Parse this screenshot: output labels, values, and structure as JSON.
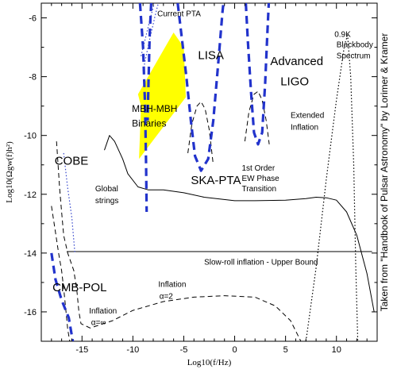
{
  "chart_data": {
    "type": "line",
    "xlabel": "Log10(f/Hz)",
    "ylabel": "Log10(Ωgw(f)h²)",
    "xlim": [
      -19,
      14
    ],
    "ylim": [
      -17,
      -5.5
    ],
    "x_ticks": [
      -15,
      -10,
      -5,
      0,
      5,
      10
    ],
    "y_ticks": [
      -16,
      -14,
      -12,
      -10,
      -8,
      -6
    ],
    "credit": "Taken from \"Handbook of Pulsar Astronomy\" by Lorimer & Kramer",
    "series": [
      {
        "style": "thin-solid",
        "color": "#000000",
        "points": [
          [
            -12.8,
            -10.5
          ],
          [
            -12.3,
            -10.0
          ],
          [
            -11.8,
            -10.2
          ],
          [
            -11.0,
            -10.8
          ],
          [
            -10.5,
            -11.3
          ],
          [
            -9.5,
            -11.75
          ],
          [
            -8.5,
            -11.85
          ],
          [
            -7.0,
            -11.85
          ],
          [
            -5.0,
            -11.95
          ],
          [
            -3.0,
            -12.1
          ],
          [
            0,
            -12.22
          ],
          [
            2.0,
            -12.22
          ],
          [
            5.0,
            -12.2
          ],
          [
            7.0,
            -12.15
          ],
          [
            8.0,
            -12.1
          ],
          [
            9.0,
            -12.12
          ],
          [
            10.0,
            -12.2
          ],
          [
            11.0,
            -12.6
          ],
          [
            12.0,
            -13.4
          ],
          [
            13.0,
            -14.7
          ],
          [
            13.7,
            -16.0
          ]
        ]
      },
      {
        "style": "thin-solid",
        "color": "#000000",
        "points": [
          [
            -16.5,
            -13.95
          ],
          [
            13.5,
            -13.95
          ]
        ]
      },
      {
        "style": "thin-dash",
        "color": "#000000",
        "points": [
          [
            -17.5,
            -10.2
          ],
          [
            -17.2,
            -11.8
          ],
          [
            -17.0,
            -12.6
          ],
          [
            -16.8,
            -13.4
          ],
          [
            -16.4,
            -14.0
          ],
          [
            -15.8,
            -14.6
          ],
          [
            -15.5,
            -15.3
          ],
          [
            -15.3,
            -16.0
          ],
          [
            -15.1,
            -16.4
          ],
          [
            -14.2,
            -16.55
          ],
          [
            -12.0,
            -16.3
          ],
          [
            -10.0,
            -15.95
          ],
          [
            -7.0,
            -15.65
          ],
          [
            -4.0,
            -15.5
          ],
          [
            -1.0,
            -15.45
          ],
          [
            2.0,
            -15.5
          ],
          [
            4.0,
            -15.8
          ],
          [
            5.5,
            -16.3
          ],
          [
            6.5,
            -17.0
          ]
        ]
      },
      {
        "style": "thin-dash",
        "color": "#000000",
        "points": [
          [
            -18.0,
            -12.4
          ],
          [
            -17.6,
            -13.3
          ],
          [
            -17.3,
            -14.0
          ],
          [
            -17.0,
            -14.6
          ],
          [
            -16.8,
            -15.2
          ],
          [
            -16.6,
            -15.9
          ],
          [
            -16.4,
            -16.6
          ],
          [
            -16.2,
            -17.0
          ]
        ]
      },
      {
        "style": "thin-dash",
        "color": "#000000",
        "points": [
          [
            -4.6,
            -10.6
          ],
          [
            -4.2,
            -9.6
          ],
          [
            -3.7,
            -9.0
          ],
          [
            -3.3,
            -8.85
          ],
          [
            -2.9,
            -9.1
          ],
          [
            -2.5,
            -9.8
          ],
          [
            -2.1,
            -11.0
          ]
        ]
      },
      {
        "style": "thin-dash",
        "color": "#000000",
        "points": [
          [
            1.0,
            -10.2
          ],
          [
            1.4,
            -9.2
          ],
          [
            1.9,
            -8.6
          ],
          [
            2.3,
            -8.5
          ],
          [
            2.7,
            -8.8
          ],
          [
            3.1,
            -9.5
          ],
          [
            3.4,
            -10.3
          ]
        ]
      },
      {
        "style": "dotted",
        "color": "#000000",
        "points": [
          [
            7.0,
            -17.0
          ],
          [
            8.0,
            -14.5
          ],
          [
            9.0,
            -11.5
          ],
          [
            10.0,
            -8.8
          ],
          [
            10.8,
            -6.9
          ],
          [
            11.1,
            -6.6
          ],
          [
            11.4,
            -8.0
          ],
          [
            11.7,
            -11.0
          ],
          [
            11.9,
            -14.5
          ],
          [
            12.1,
            -17.0
          ]
        ]
      },
      {
        "style": "dotted",
        "color": "#3344cc",
        "points": [
          [
            -9.2,
            -7.3
          ],
          [
            -8.7,
            -6.6
          ],
          [
            -8.2,
            -5.9
          ],
          [
            -7.9,
            -5.5
          ]
        ]
      },
      {
        "style": "dotted",
        "color": "#3344cc",
        "points": [
          [
            -9.0,
            -7.8
          ],
          [
            -8.4,
            -6.8
          ],
          [
            -7.8,
            -5.9
          ],
          [
            -7.5,
            -5.5
          ]
        ]
      },
      {
        "style": "dotted",
        "color": "#3344cc",
        "points": [
          [
            -16.8,
            -10.6
          ],
          [
            -16.4,
            -11.8
          ],
          [
            -16.0,
            -12.8
          ],
          [
            -15.7,
            -14.0
          ]
        ]
      },
      {
        "style": "heavy-dash",
        "color": "#2233cc",
        "points": [
          [
            -9.3,
            -5.5
          ],
          [
            -9.0,
            -7.0
          ],
          [
            -8.8,
            -9.0
          ],
          [
            -8.7,
            -11.0
          ],
          [
            -8.65,
            -12.6
          ]
        ]
      },
      {
        "style": "heavy-dash",
        "color": "#2233cc",
        "points": [
          [
            -8.2,
            -5.5
          ],
          [
            -8.35,
            -6.6
          ],
          [
            -8.45,
            -8.0
          ],
          [
            -8.55,
            -9.5
          ]
        ]
      },
      {
        "style": "heavy-dash",
        "color": "#2233cc",
        "points": [
          [
            -5.6,
            -5.5
          ],
          [
            -5.15,
            -6.8
          ],
          [
            -4.75,
            -8.0
          ],
          [
            -4.3,
            -9.5
          ],
          [
            -3.9,
            -10.7
          ],
          [
            -3.3,
            -11.2
          ],
          [
            -2.6,
            -10.8
          ],
          [
            -2.1,
            -9.5
          ],
          [
            -1.6,
            -7.5
          ],
          [
            -1.2,
            -5.8
          ],
          [
            -1.1,
            -5.5
          ]
        ]
      },
      {
        "style": "heavy-dash",
        "color": "#2233cc",
        "points": [
          [
            1.1,
            -5.5
          ],
          [
            1.3,
            -6.8
          ],
          [
            1.6,
            -8.5
          ],
          [
            1.9,
            -9.9
          ],
          [
            2.3,
            -10.3
          ],
          [
            2.7,
            -9.9
          ],
          [
            3.0,
            -8.2
          ],
          [
            3.2,
            -6.6
          ],
          [
            3.35,
            -5.5
          ]
        ]
      },
      {
        "style": "heavy-dash",
        "color": "#2233cc",
        "points": [
          [
            -18.0,
            -14.0
          ],
          [
            -17.6,
            -14.9
          ],
          [
            -17.0,
            -15.6
          ],
          [
            -16.3,
            -16.2
          ],
          [
            -15.9,
            -17.0
          ]
        ]
      }
    ],
    "mbh_region": {
      "color": "#ffff00",
      "points": [
        [
          -9.4,
          -10.8
        ],
        [
          -9.2,
          -9.0
        ],
        [
          -9.5,
          -8.6
        ],
        [
          -6.0,
          -6.5
        ],
        [
          -5.0,
          -7.0
        ],
        [
          -4.8,
          -8.7
        ]
      ]
    },
    "annotations": [
      {
        "text": "Current PTA",
        "x": -7.6,
        "y": -5.95,
        "size": "small"
      },
      {
        "text": "LISA",
        "x": -3.6,
        "y": -7.4,
        "size": "big"
      },
      {
        "text": "Advanced",
        "x": 3.5,
        "y": -7.6,
        "size": "big"
      },
      {
        "text": "LIGO",
        "x": 4.5,
        "y": -8.3,
        "size": "big"
      },
      {
        "text": "0.9K",
        "x": 9.8,
        "y": -6.65,
        "size": "small"
      },
      {
        "text": "Blackbody",
        "x": 10.0,
        "y": -7.0,
        "size": "small"
      },
      {
        "text": "Spectrum",
        "x": 10.0,
        "y": -7.38,
        "size": "small"
      },
      {
        "text": "MBH-MBH",
        "x": -10.1,
        "y": -9.2,
        "size": "mid"
      },
      {
        "text": "Binaries",
        "x": -10.1,
        "y": -9.7,
        "size": "mid"
      },
      {
        "text": "Extended",
        "x": 5.5,
        "y": -9.4,
        "size": "small"
      },
      {
        "text": "Inflation",
        "x": 5.5,
        "y": -9.8,
        "size": "small"
      },
      {
        "text": "COBE",
        "x": -17.7,
        "y": -11.0,
        "size": "big"
      },
      {
        "text": "1st Order",
        "x": 0.7,
        "y": -11.2,
        "size": "small"
      },
      {
        "text": "EW Phase",
        "x": 0.7,
        "y": -11.55,
        "size": "small"
      },
      {
        "text": "Transition",
        "x": 0.7,
        "y": -11.9,
        "size": "small"
      },
      {
        "text": "SKA-PTA",
        "x": -4.3,
        "y": -11.65,
        "size": "big"
      },
      {
        "text": "Global",
        "x": -13.7,
        "y": -11.9,
        "size": "small"
      },
      {
        "text": "strings",
        "x": -13.7,
        "y": -12.3,
        "size": "small"
      },
      {
        "text": "Slow-roll inflation - Upper Bound",
        "x": -3.0,
        "y": -14.4,
        "size": "small"
      },
      {
        "text": "CMB-POL",
        "x": -17.9,
        "y": -15.3,
        "size": "big"
      },
      {
        "text": "Inflation",
        "x": -7.5,
        "y": -15.15,
        "size": "small"
      },
      {
        "text": "α=2",
        "x": -7.4,
        "y": -15.55,
        "size": "small"
      },
      {
        "text": "Inflation",
        "x": -14.3,
        "y": -16.05,
        "size": "small"
      },
      {
        "text": "α=∞",
        "x": -14.1,
        "y": -16.45,
        "size": "small"
      }
    ]
  }
}
